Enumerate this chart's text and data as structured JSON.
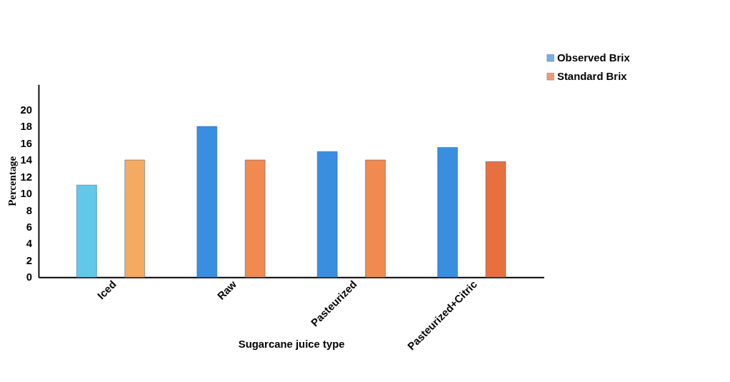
{
  "chart_data": {
    "type": "bar",
    "xlabel": "Sugarcane juice type",
    "ylabel": "Percentage",
    "categories": [
      "Iced",
      "Raw",
      "Pasteurized",
      "Pasteurized+Citric"
    ],
    "series": [
      {
        "name": "Observed Brix",
        "color": "#3a8ee0",
        "colors": [
          "#62c8ea",
          "#3a8ee0",
          "#3a8ee0",
          "#3a8ee0"
        ],
        "values": [
          11,
          18,
          15,
          15.5
        ]
      },
      {
        "name": "Standard Brix",
        "color": "#e8703f",
        "colors": [
          "#f5aa62",
          "#f08a50",
          "#f08a50",
          "#e8703f"
        ],
        "values": [
          14,
          14,
          14,
          13.8
        ]
      }
    ],
    "ylim": [
      0,
      23
    ],
    "yticks": [
      0,
      2,
      4,
      6,
      8,
      10,
      12,
      14,
      16,
      18,
      20
    ],
    "grid": false,
    "legend": "top right"
  }
}
